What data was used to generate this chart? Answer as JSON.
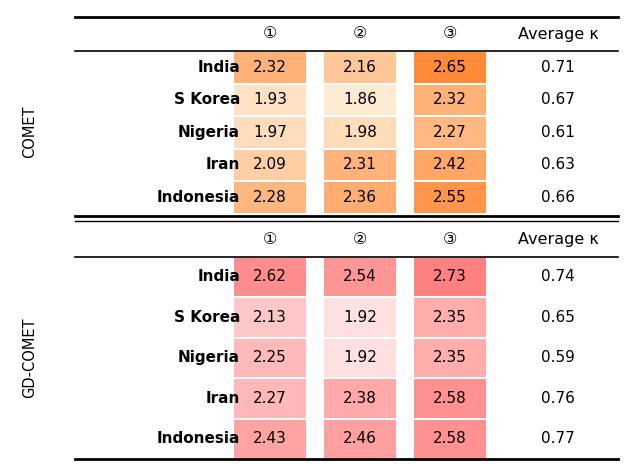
{
  "comet": {
    "rows": [
      "India",
      "S Korea",
      "Nigeria",
      "Iran",
      "Indonesia"
    ],
    "col1": [
      2.32,
      1.93,
      1.97,
      2.09,
      2.28
    ],
    "col2": [
      2.16,
      1.86,
      1.98,
      2.31,
      2.36
    ],
    "col3": [
      2.65,
      2.32,
      2.27,
      2.42,
      2.55
    ],
    "kappa": [
      0.71,
      0.67,
      0.61,
      0.63,
      0.66
    ]
  },
  "gdcomet": {
    "rows": [
      "India",
      "S Korea",
      "Nigeria",
      "Iran",
      "Indonesia"
    ],
    "col1": [
      2.62,
      2.13,
      2.25,
      2.27,
      2.43
    ],
    "col2": [
      2.54,
      1.92,
      1.92,
      2.38,
      2.46
    ],
    "col3": [
      2.73,
      2.35,
      2.35,
      2.58,
      2.58
    ],
    "kappa": [
      0.74,
      0.65,
      0.59,
      0.76,
      0.77
    ]
  },
  "comet_color_min": 1.86,
  "comet_color_max": 2.65,
  "gdcomet_color_min": 1.92,
  "gdcomet_color_max": 2.73,
  "header_cols": [
    "①",
    "②",
    "③",
    "Average κ"
  ],
  "section1_label": "COMET",
  "section2_label": "GD-COMET",
  "bg_color": "#ffffff"
}
